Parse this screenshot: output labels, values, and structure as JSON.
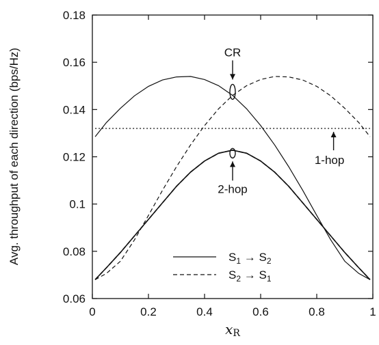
{
  "chart_data": {
    "type": "line",
    "xlabel": "x",
    "xlabel_sub": "R",
    "ylabel": "Avg. throughput of each direction (bps/Hz)",
    "xlim": [
      0,
      1
    ],
    "ylim": [
      0.06,
      0.18
    ],
    "xticks": [
      0,
      0.2,
      0.4,
      0.6,
      0.8,
      1
    ],
    "xtick_labels": [
      "0",
      "0.2",
      "0.4",
      "0.6",
      "0.8",
      "1"
    ],
    "yticks": [
      0.06,
      0.08,
      0.1,
      0.12,
      0.14,
      0.16,
      0.18
    ],
    "ytick_labels": [
      "0.06",
      "0.08",
      "0.1",
      "0.12",
      "0.14",
      "0.16",
      "0.18"
    ],
    "grid": false,
    "legend_position": "bottom-right",
    "x": [
      0.01,
      0.05,
      0.1,
      0.15,
      0.2,
      0.25,
      0.3,
      0.35,
      0.4,
      0.45,
      0.5,
      0.55,
      0.6,
      0.65,
      0.7,
      0.75,
      0.8,
      0.85,
      0.9,
      0.95,
      0.99
    ],
    "series": [
      {
        "group": "CR",
        "name": "S1 → S2",
        "style": "solid",
        "values": [
          0.1285,
          0.1345,
          0.1405,
          0.1458,
          0.1498,
          0.1525,
          0.1538,
          0.154,
          0.1527,
          0.1501,
          0.146,
          0.1403,
          0.1332,
          0.125,
          0.1158,
          0.1058,
          0.0952,
          0.0848,
          0.0758,
          0.0706,
          0.068
        ]
      },
      {
        "group": "CR",
        "name": "S2 → S1",
        "style": "dashed",
        "values": [
          0.068,
          0.0706,
          0.0758,
          0.0848,
          0.0952,
          0.1058,
          0.1158,
          0.125,
          0.1332,
          0.1403,
          0.146,
          0.1501,
          0.1527,
          0.154,
          0.1538,
          0.1525,
          0.1498,
          0.1458,
          0.1405,
          0.1345,
          0.1285
        ]
      },
      {
        "group": "2-hop",
        "name": "S1 → S2",
        "style": "solid",
        "values": [
          0.068,
          0.073,
          0.0795,
          0.0865,
          0.0935,
          0.1005,
          0.1075,
          0.1135,
          0.1182,
          0.1215,
          0.1228,
          0.1215,
          0.1182,
          0.1135,
          0.1075,
          0.1005,
          0.0935,
          0.0865,
          0.0795,
          0.073,
          0.068
        ]
      },
      {
        "group": "2-hop",
        "name": "S2 → S1",
        "style": "dashed",
        "values": [
          0.068,
          0.073,
          0.0795,
          0.0865,
          0.0935,
          0.1005,
          0.1075,
          0.1135,
          0.1182,
          0.1215,
          0.1228,
          0.1215,
          0.1182,
          0.1135,
          0.1075,
          0.1005,
          0.0935,
          0.0865,
          0.0795,
          0.073,
          0.068
        ]
      },
      {
        "group": "1-hop",
        "name": "",
        "style": "dotted",
        "values": [
          0.132,
          0.132,
          0.132,
          0.132,
          0.132,
          0.132,
          0.132,
          0.132,
          0.132,
          0.132,
          0.132,
          0.132,
          0.132,
          0.132,
          0.132,
          0.132,
          0.132,
          0.132,
          0.132,
          0.132,
          0.132
        ]
      }
    ],
    "annotations": [
      {
        "text": "CR",
        "x": 0.5,
        "y": 0.1475
      },
      {
        "text": "2-hop",
        "x": 0.5,
        "y": 0.1215
      },
      {
        "text": "1-hop",
        "x": 0.86,
        "y": 0.132
      }
    ],
    "legend": [
      {
        "style": "solid",
        "label": "S",
        "from": "1",
        "to": "2"
      },
      {
        "style": "dashed",
        "label": "S",
        "from": "2",
        "to": "1"
      }
    ],
    "arrow": "→"
  }
}
